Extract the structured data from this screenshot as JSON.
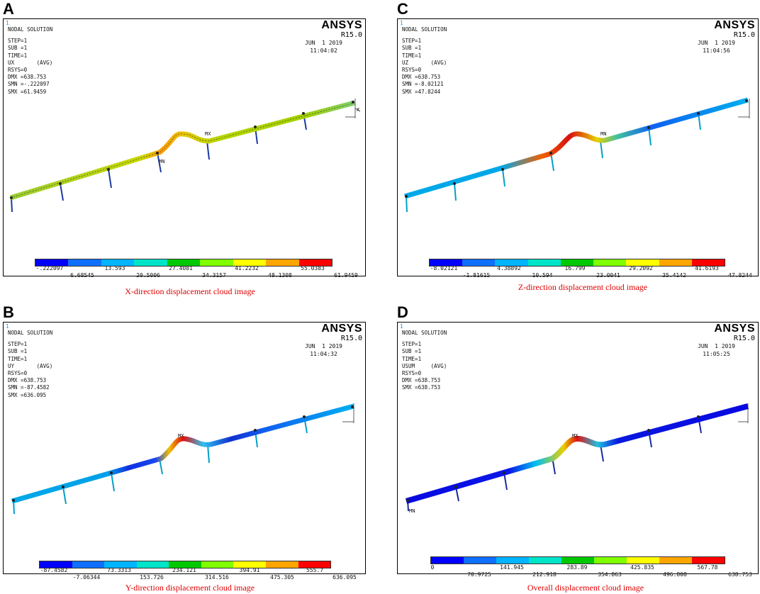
{
  "colors": {
    "bands": [
      "#0000ff",
      "#0f6fff",
      "#00b4ff",
      "#00e4c8",
      "#00c800",
      "#80ff00",
      "#ffff00",
      "#ffa500",
      "#ff0000"
    ],
    "caption": "#e00000"
  },
  "panels": [
    {
      "letter": "A",
      "corner_index": "1",
      "title": "NODAL SOLUTION",
      "info_lines": [
        "STEP=1",
        "SUB =1",
        "TIME=1",
        "UX       (AVG)",
        "RSYS=0",
        "DMX =638.753",
        "SMN =-.222097",
        "SMX =61.9459"
      ],
      "brand": "ANSYS",
      "version": "R15.0",
      "date": "JUN  1 2019",
      "time": "11:04:02",
      "markers": {
        "mx": "MX",
        "mn": "MN"
      },
      "legend_top": [
        "-.222097",
        "13.593",
        "27.4081",
        "41.2232",
        "55.0383"
      ],
      "legend_bottom": [
        "6.68545",
        "20.5006",
        "34.3157",
        "48.1308",
        "61.9459"
      ],
      "caption": "X-direction displacement cloud image"
    },
    {
      "letter": "C",
      "corner_index": "1",
      "title": "NODAL SOLUTION",
      "info_lines": [
        "STEP=1",
        "SUB =1",
        "TIME=1",
        "UZ       (AVG)",
        "RSYS=0",
        "DMX =638.753",
        "SMN =-8.02121",
        "SMX =47.8244"
      ],
      "brand": "ANSYS",
      "version": "R15.0",
      "date": "JUN  1 2019",
      "time": "11:04:56",
      "markers": {
        "mx": "MX",
        "mn": "MN"
      },
      "legend_top": [
        "-8.02121",
        "4.38892",
        "16.799",
        "29.2092",
        "41.6193"
      ],
      "legend_bottom": [
        "-1.81615",
        "10.594",
        "23.0041",
        "35.4142",
        "47.8244"
      ],
      "caption": "Z-direction displacement cloud image"
    },
    {
      "letter": "B",
      "corner_index": "1",
      "title": "NODAL SOLUTION",
      "info_lines": [
        "STEP=1",
        "SUB =1",
        "TIME=1",
        "UY       (AVG)",
        "RSYS=0",
        "DMX =638.753",
        "SMN =-87.4582",
        "SMX =636.095"
      ],
      "brand": "ANSYS",
      "version": "R15.0",
      "date": "JUN  1 2019",
      "time": "11:04:32",
      "markers": {
        "mx": "MX",
        "mn": "MN"
      },
      "legend_top": [
        "-87.4582",
        "73.3313",
        "234.121",
        "394.91",
        "555.7"
      ],
      "legend_bottom": [
        "-7.06344",
        "153.726",
        "314.516",
        "475.305",
        "636.095"
      ],
      "caption": "Y-direction displacement cloud image"
    },
    {
      "letter": "D",
      "corner_index": "1",
      "title": "NODAL SOLUTION",
      "info_lines": [
        "STEP=1",
        "SUB =1",
        "TIME=1",
        "USUM     (AVG)",
        "RSYS=0",
        "DMX =638.753",
        "SMX =638.753"
      ],
      "brand": "ANSYS",
      "version": "R15.0",
      "date": "JUN  1 2019",
      "time": "11:05:25",
      "markers": {
        "mx": "MX",
        "mn": "MN"
      },
      "legend_top": [
        "0",
        "141.945",
        "283.89",
        "425.835",
        "567.78"
      ],
      "legend_bottom": [
        "70.9725",
        "212.918",
        "354.863",
        "496.808",
        "638.753"
      ],
      "caption": "Overall displacement cloud image"
    }
  ]
}
